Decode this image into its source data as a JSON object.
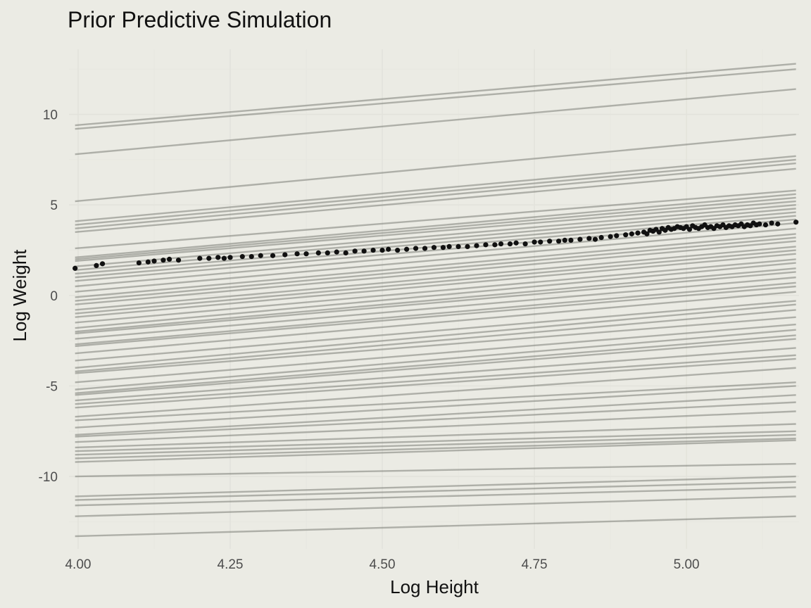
{
  "chart_data": {
    "type": "line",
    "title": "Prior Predictive Simulation",
    "xlabel": "Log Height",
    "ylabel": "Log Weight",
    "xlim": [
      3.985,
      5.185
    ],
    "ylim": [
      -14.0,
      13.6
    ],
    "x_ticks": [
      4.0,
      4.25,
      4.5,
      4.75,
      5.0
    ],
    "x_tick_labels": [
      "4.00",
      "4.25",
      "4.50",
      "4.75",
      "5.00"
    ],
    "y_ticks": [
      -10,
      -5,
      0,
      5,
      10
    ],
    "y_tick_labels": [
      "-10",
      "-5",
      "0",
      "5",
      "10"
    ],
    "grid": true,
    "legend": "none",
    "colors": {
      "background": "#ebebe4",
      "grid_major": "#e3e3dc",
      "grid_minor": "#e7e7e0",
      "prior_line": "#5a5d55",
      "observed_point": "#111111"
    },
    "prior_lines": {
      "x_start": 3.995,
      "x_end": 5.18,
      "segments": [
        [
          9.4,
          12.8
        ],
        [
          9.2,
          12.5
        ],
        [
          7.8,
          11.4
        ],
        [
          5.2,
          8.9
        ],
        [
          4.1,
          7.7
        ],
        [
          3.9,
          7.5
        ],
        [
          3.7,
          7.3
        ],
        [
          3.5,
          7.0
        ],
        [
          2.6,
          5.8
        ],
        [
          2.1,
          5.6
        ],
        [
          2.0,
          5.4
        ],
        [
          1.9,
          5.2
        ],
        [
          1.6,
          5.0
        ],
        [
          1.4,
          4.8
        ],
        [
          1.2,
          4.6
        ],
        [
          1.0,
          4.4
        ],
        [
          0.8,
          4.2
        ],
        [
          0.5,
          4.0
        ],
        [
          0.2,
          3.7
        ],
        [
          -0.1,
          3.4
        ],
        [
          -0.3,
          3.2
        ],
        [
          -0.5,
          3.0
        ],
        [
          -0.8,
          2.7
        ],
        [
          -1.0,
          2.5
        ],
        [
          -1.2,
          2.3
        ],
        [
          -1.5,
          2.0
        ],
        [
          -1.8,
          1.8
        ],
        [
          -2.0,
          1.5
        ],
        [
          -2.1,
          1.3
        ],
        [
          -2.4,
          1.0
        ],
        [
          -2.7,
          0.7
        ],
        [
          -2.8,
          0.5
        ],
        [
          -3.2,
          0.2
        ],
        [
          -3.6,
          -0.3
        ],
        [
          -4.0,
          -0.5
        ],
        [
          -4.2,
          -0.8
        ],
        [
          -4.3,
          -1.2
        ],
        [
          -4.8,
          -1.6
        ],
        [
          -5.2,
          -1.9
        ],
        [
          -5.4,
          -2.2
        ],
        [
          -5.5,
          -2.4
        ],
        [
          -5.8,
          -2.9
        ],
        [
          -6.0,
          -3.3
        ],
        [
          -6.2,
          -3.5
        ],
        [
          -6.7,
          -4.0
        ],
        [
          -6.9,
          -4.8
        ],
        [
          -7.3,
          -5.0
        ],
        [
          -7.7,
          -5.5
        ],
        [
          -7.8,
          -5.9
        ],
        [
          -8.1,
          -6.4
        ],
        [
          -8.4,
          -7.1
        ],
        [
          -8.6,
          -7.5
        ],
        [
          -8.8,
          -7.7
        ],
        [
          -9.0,
          -7.9
        ],
        [
          -9.2,
          -8.0
        ],
        [
          -10.0,
          -9.3
        ],
        [
          -11.1,
          -10.0
        ],
        [
          -11.3,
          -10.3
        ],
        [
          -11.6,
          -10.6
        ],
        [
          -12.2,
          -11.1
        ],
        [
          -13.3,
          -12.2
        ]
      ]
    },
    "observed": {
      "x": [
        3.995,
        4.03,
        4.04,
        4.1,
        4.115,
        4.125,
        4.14,
        4.15,
        4.165,
        4.2,
        4.215,
        4.23,
        4.24,
        4.25,
        4.27,
        4.285,
        4.3,
        4.32,
        4.34,
        4.36,
        4.375,
        4.395,
        4.41,
        4.425,
        4.44,
        4.455,
        4.47,
        4.485,
        4.5,
        4.51,
        4.525,
        4.54,
        4.555,
        4.57,
        4.585,
        4.6,
        4.61,
        4.625,
        4.64,
        4.655,
        4.67,
        4.685,
        4.695,
        4.71,
        4.72,
        4.735,
        4.75,
        4.76,
        4.775,
        4.79,
        4.8,
        4.81,
        4.825,
        4.84,
        4.85,
        4.86,
        4.875,
        4.885,
        4.9,
        4.91,
        4.92,
        4.93,
        4.935,
        4.94,
        4.945,
        4.95,
        4.955,
        4.96,
        4.965,
        4.97,
        4.975,
        4.98,
        4.985,
        4.99,
        4.995,
        5.0,
        5.005,
        5.01,
        5.015,
        5.02,
        5.025,
        5.03,
        5.035,
        5.04,
        5.045,
        5.05,
        5.055,
        5.06,
        5.065,
        5.07,
        5.075,
        5.08,
        5.085,
        5.09,
        5.095,
        5.1,
        5.105,
        5.11,
        5.115,
        5.12,
        5.13,
        5.14,
        5.15,
        5.18
      ],
      "y": [
        1.5,
        1.65,
        1.75,
        1.8,
        1.85,
        1.9,
        1.95,
        2.0,
        1.95,
        2.05,
        2.05,
        2.1,
        2.05,
        2.1,
        2.15,
        2.15,
        2.2,
        2.2,
        2.25,
        2.3,
        2.3,
        2.35,
        2.35,
        2.4,
        2.35,
        2.45,
        2.45,
        2.5,
        2.5,
        2.55,
        2.5,
        2.55,
        2.6,
        2.6,
        2.65,
        2.65,
        2.7,
        2.7,
        2.7,
        2.75,
        2.8,
        2.8,
        2.85,
        2.85,
        2.9,
        2.85,
        2.95,
        2.95,
        3.0,
        3.0,
        3.05,
        3.05,
        3.1,
        3.15,
        3.1,
        3.2,
        3.25,
        3.3,
        3.35,
        3.4,
        3.45,
        3.5,
        3.4,
        3.6,
        3.55,
        3.65,
        3.5,
        3.7,
        3.6,
        3.75,
        3.65,
        3.7,
        3.8,
        3.75,
        3.7,
        3.8,
        3.65,
        3.85,
        3.75,
        3.7,
        3.8,
        3.9,
        3.75,
        3.8,
        3.7,
        3.85,
        3.8,
        3.9,
        3.75,
        3.85,
        3.8,
        3.9,
        3.85,
        3.95,
        3.8,
        3.9,
        3.85,
        4.0,
        3.9,
        3.95,
        3.9,
        4.0,
        3.95,
        4.05
      ]
    }
  }
}
